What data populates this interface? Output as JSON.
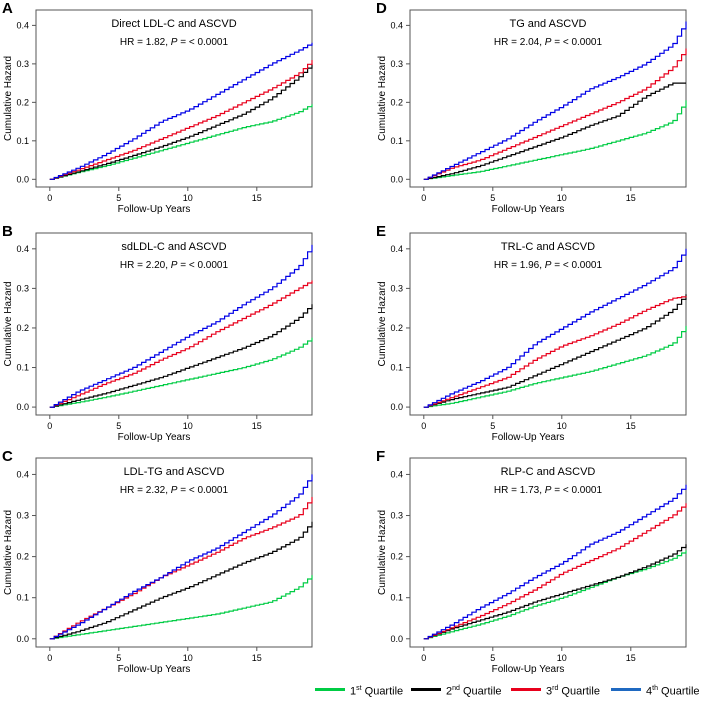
{
  "legend": {
    "items": [
      {
        "ordinal": "1",
        "sup": "st",
        "label": "Quartile",
        "color": "#00cc44"
      },
      {
        "ordinal": "2",
        "sup": "nd",
        "label": "Quartile",
        "color": "#000000"
      },
      {
        "ordinal": "3",
        "sup": "rd",
        "label": "Quartile",
        "color": "#e8001c"
      },
      {
        "ordinal": "4",
        "sup": "th",
        "label": "Quartile",
        "color": "#1f69c1"
      }
    ]
  },
  "curve_colors": [
    "#00cc44",
    "#000000",
    "#e8001c",
    "#0000e6"
  ],
  "chart_data": [
    {
      "panel": "A",
      "type": "line",
      "title": "Direct LDL-C and ASCVD",
      "hr_text": "HR = 1.82, ",
      "p_label": "P",
      "p_text": " = < 0.0001",
      "xlabel": "Follow-Up Years",
      "ylabel": "Cumulative Hazard",
      "xlim": [
        -1,
        19
      ],
      "ylim": [
        -0.02,
        0.44
      ],
      "xticks": [
        0,
        5,
        10,
        15
      ],
      "yticks": [
        0.0,
        0.1,
        0.2,
        0.3,
        0.4
      ],
      "x": [
        0,
        2,
        4,
        6,
        8,
        10,
        12,
        14,
        16,
        18,
        19
      ],
      "series": [
        {
          "name": "1st Quartile",
          "values": [
            0,
            0.018,
            0.035,
            0.055,
            0.075,
            0.095,
            0.115,
            0.135,
            0.15,
            0.175,
            0.195
          ]
        },
        {
          "name": "2nd Quartile",
          "values": [
            0,
            0.02,
            0.04,
            0.062,
            0.085,
            0.11,
            0.14,
            0.17,
            0.21,
            0.265,
            0.3
          ]
        },
        {
          "name": "3rd Quartile",
          "values": [
            0,
            0.025,
            0.05,
            0.075,
            0.105,
            0.135,
            0.165,
            0.2,
            0.235,
            0.275,
            0.31
          ]
        },
        {
          "name": "4th Quartile",
          "values": [
            0,
            0.03,
            0.065,
            0.105,
            0.15,
            0.18,
            0.22,
            0.26,
            0.3,
            0.335,
            0.355
          ]
        }
      ]
    },
    {
      "panel": "B",
      "type": "line",
      "title": "sdLDL-C and ASCVD",
      "hr_text": "HR = 2.20, ",
      "p_label": "P",
      "p_text": " = < 0.0001",
      "xlabel": "Follow-Up Years",
      "ylabel": "Cumulative Hazard",
      "xlim": [
        -1,
        19
      ],
      "ylim": [
        -0.02,
        0.44
      ],
      "xticks": [
        0,
        5,
        10,
        15
      ],
      "yticks": [
        0.0,
        0.1,
        0.2,
        0.3,
        0.4
      ],
      "x": [
        0,
        2,
        4,
        6,
        8,
        10,
        12,
        14,
        16,
        18,
        19
      ],
      "series": [
        {
          "name": "1st Quartile",
          "values": [
            0,
            0.012,
            0.025,
            0.04,
            0.055,
            0.07,
            0.085,
            0.1,
            0.12,
            0.15,
            0.175
          ]
        },
        {
          "name": "2nd Quartile",
          "values": [
            0,
            0.018,
            0.035,
            0.055,
            0.075,
            0.1,
            0.125,
            0.15,
            0.18,
            0.225,
            0.26
          ]
        },
        {
          "name": "3rd Quartile",
          "values": [
            0,
            0.03,
            0.06,
            0.085,
            0.12,
            0.15,
            0.19,
            0.225,
            0.26,
            0.3,
            0.32
          ]
        },
        {
          "name": "4th Quartile",
          "values": [
            0,
            0.04,
            0.07,
            0.1,
            0.14,
            0.18,
            0.215,
            0.26,
            0.3,
            0.355,
            0.41
          ]
        }
      ]
    },
    {
      "panel": "C",
      "type": "line",
      "title": "LDL-TG and ASCVD",
      "hr_text": "HR = 2.32, ",
      "p_label": "P",
      "p_text": " = < 0.0001",
      "xlabel": "Follow-Up Years",
      "ylabel": "Cumulative Hazard",
      "xlim": [
        -1,
        19
      ],
      "ylim": [
        -0.02,
        0.44
      ],
      "xticks": [
        0,
        5,
        10,
        15
      ],
      "yticks": [
        0.0,
        0.1,
        0.2,
        0.3,
        0.4
      ],
      "x": [
        0,
        2,
        4,
        6,
        8,
        10,
        12,
        14,
        16,
        18,
        19
      ],
      "series": [
        {
          "name": "1st Quartile",
          "values": [
            0,
            0.01,
            0.02,
            0.03,
            0.04,
            0.05,
            0.06,
            0.075,
            0.09,
            0.125,
            0.155
          ]
        },
        {
          "name": "2nd Quartile",
          "values": [
            0,
            0.018,
            0.04,
            0.07,
            0.1,
            0.125,
            0.155,
            0.185,
            0.21,
            0.245,
            0.285
          ]
        },
        {
          "name": "3rd Quartile",
          "values": [
            0,
            0.04,
            0.075,
            0.11,
            0.15,
            0.18,
            0.21,
            0.245,
            0.27,
            0.3,
            0.345
          ]
        },
        {
          "name": "4th Quartile",
          "values": [
            0,
            0.035,
            0.075,
            0.115,
            0.15,
            0.19,
            0.22,
            0.26,
            0.3,
            0.35,
            0.4
          ]
        }
      ]
    },
    {
      "panel": "D",
      "type": "line",
      "title": "TG and ASCVD",
      "hr_text": "HR = 2.04, ",
      "p_label": "P",
      "p_text": " = < 0.0001",
      "xlabel": "Follow-Up Years",
      "ylabel": "Cumulative Hazard",
      "xlim": [
        -1,
        19
      ],
      "ylim": [
        -0.02,
        0.44
      ],
      "xticks": [
        0,
        5,
        10,
        15
      ],
      "yticks": [
        0.0,
        0.1,
        0.2,
        0.3,
        0.4
      ],
      "x": [
        0,
        2,
        4,
        6,
        8,
        10,
        12,
        14,
        16,
        18,
        19
      ],
      "series": [
        {
          "name": "1st Quartile",
          "values": [
            0,
            0.01,
            0.02,
            0.035,
            0.05,
            0.065,
            0.08,
            0.1,
            0.12,
            0.15,
            0.205
          ]
        },
        {
          "name": "2nd Quartile",
          "values": [
            0,
            0.015,
            0.035,
            0.06,
            0.085,
            0.11,
            0.14,
            0.165,
            0.215,
            0.25,
            0.25
          ]
        },
        {
          "name": "3rd Quartile",
          "values": [
            0,
            0.03,
            0.05,
            0.08,
            0.11,
            0.14,
            0.17,
            0.2,
            0.235,
            0.29,
            0.34
          ]
        },
        {
          "name": "4th Quartile",
          "values": [
            0,
            0.035,
            0.07,
            0.105,
            0.15,
            0.19,
            0.235,
            0.265,
            0.3,
            0.35,
            0.41
          ]
        }
      ]
    },
    {
      "panel": "E",
      "type": "line",
      "title": "TRL-C and ASCVD",
      "hr_text": "HR = 1.96, ",
      "p_label": "P",
      "p_text": " = < 0.0001",
      "xlabel": "Follow-Up Years",
      "ylabel": "Cumulative Hazard",
      "xlim": [
        -1,
        19
      ],
      "ylim": [
        -0.02,
        0.44
      ],
      "xticks": [
        0,
        5,
        10,
        15
      ],
      "yticks": [
        0.0,
        0.1,
        0.2,
        0.3,
        0.4
      ],
      "x": [
        0,
        2,
        4,
        6,
        8,
        10,
        12,
        14,
        16,
        18,
        19
      ],
      "series": [
        {
          "name": "1st Quartile",
          "values": [
            0,
            0.01,
            0.025,
            0.04,
            0.06,
            0.075,
            0.09,
            0.11,
            0.13,
            0.16,
            0.205
          ]
        },
        {
          "name": "2nd Quartile",
          "values": [
            0,
            0.02,
            0.035,
            0.05,
            0.08,
            0.11,
            0.14,
            0.17,
            0.2,
            0.245,
            0.285
          ]
        },
        {
          "name": "3rd Quartile",
          "values": [
            0,
            0.025,
            0.05,
            0.075,
            0.12,
            0.155,
            0.18,
            0.21,
            0.245,
            0.275,
            0.28
          ]
        },
        {
          "name": "4th Quartile",
          "values": [
            0,
            0.035,
            0.065,
            0.1,
            0.16,
            0.2,
            0.24,
            0.275,
            0.31,
            0.35,
            0.4
          ]
        }
      ]
    },
    {
      "panel": "F",
      "type": "line",
      "title": "RLP-C and ASCVD",
      "hr_text": "HR = 1.73, ",
      "p_label": "P",
      "p_text": " = < 0.0001",
      "xlabel": "Follow-Up Years",
      "ylabel": "Cumulative Hazard",
      "xlim": [
        -1,
        19
      ],
      "ylim": [
        -0.02,
        0.44
      ],
      "xticks": [
        0,
        5,
        10,
        15
      ],
      "yticks": [
        0.0,
        0.1,
        0.2,
        0.3,
        0.4
      ],
      "x": [
        0,
        2,
        4,
        6,
        8,
        10,
        12,
        14,
        16,
        18,
        19
      ],
      "series": [
        {
          "name": "1st Quartile",
          "values": [
            0,
            0.018,
            0.035,
            0.055,
            0.08,
            0.1,
            0.125,
            0.15,
            0.17,
            0.195,
            0.215
          ]
        },
        {
          "name": "2nd Quartile",
          "values": [
            0,
            0.025,
            0.045,
            0.065,
            0.09,
            0.11,
            0.13,
            0.15,
            0.175,
            0.205,
            0.23
          ]
        },
        {
          "name": "3rd Quartile",
          "values": [
            0,
            0.028,
            0.055,
            0.085,
            0.12,
            0.16,
            0.19,
            0.22,
            0.26,
            0.3,
            0.33
          ]
        },
        {
          "name": "4th Quartile",
          "values": [
            0,
            0.035,
            0.075,
            0.11,
            0.15,
            0.185,
            0.23,
            0.26,
            0.3,
            0.34,
            0.375
          ]
        }
      ]
    }
  ]
}
